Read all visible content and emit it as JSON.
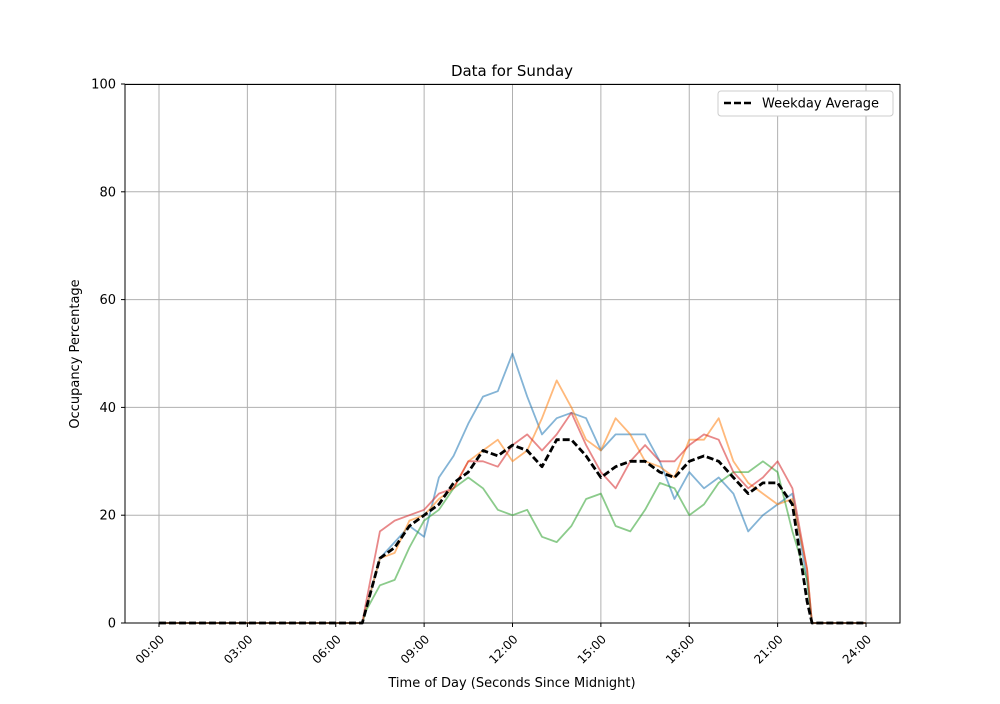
{
  "chart_data": {
    "type": "line",
    "title": "Data for Sunday",
    "xlabel": "Time of Day (Seconds Since Midnight)",
    "ylabel": "Occupancy Percentage",
    "ylim": [
      0,
      100
    ],
    "xlim": [
      "00:00",
      "24:00"
    ],
    "x_ticks": [
      "00:00",
      "03:00",
      "06:00",
      "09:00",
      "12:00",
      "15:00",
      "18:00",
      "21:00",
      "24:00"
    ],
    "y_ticks": [
      0,
      20,
      40,
      60,
      80,
      100
    ],
    "grid": true,
    "legend_position": "top-right",
    "x": [
      "00:00",
      "06:54",
      "07:00",
      "07:30",
      "08:00",
      "08:30",
      "09:00",
      "09:30",
      "10:00",
      "10:30",
      "11:00",
      "11:30",
      "12:00",
      "12:30",
      "13:00",
      "13:30",
      "14:00",
      "14:30",
      "15:00",
      "15:30",
      "16:00",
      "16:30",
      "17:00",
      "17:30",
      "18:00",
      "18:30",
      "19:00",
      "19:30",
      "20:00",
      "20:30",
      "21:00",
      "21:30",
      "22:00",
      "22:10",
      "24:00"
    ],
    "series": [
      {
        "color": "#1f77b4",
        "style": "solid",
        "alpha": 0.55,
        "values": [
          0,
          0,
          2,
          12,
          15,
          18,
          16,
          27,
          31,
          37,
          42,
          43,
          50,
          42,
          35,
          38,
          39,
          38,
          32,
          35,
          35,
          35,
          30,
          23,
          28,
          25,
          27,
          24,
          17,
          20,
          22,
          24,
          8,
          0,
          0
        ]
      },
      {
        "color": "#ff7f0e",
        "style": "solid",
        "alpha": 0.55,
        "values": [
          0,
          0,
          2,
          12,
          13,
          19,
          20,
          23,
          25,
          30,
          32,
          34,
          30,
          32,
          38,
          45,
          40,
          34,
          32,
          38,
          35,
          30,
          29,
          27,
          34,
          34,
          38,
          30,
          26,
          24,
          22,
          23,
          10,
          0,
          0
        ]
      },
      {
        "color": "#2ca02c",
        "style": "solid",
        "alpha": 0.55,
        "values": [
          0,
          0,
          2,
          7,
          8,
          14,
          19,
          21,
          25,
          27,
          25,
          21,
          20,
          21,
          16,
          15,
          18,
          23,
          24,
          18,
          17,
          21,
          26,
          25,
          20,
          22,
          26,
          28,
          28,
          30,
          28,
          17,
          8,
          0,
          0
        ]
      },
      {
        "color": "#d62728",
        "style": "solid",
        "alpha": 0.55,
        "values": [
          0,
          0,
          3,
          17,
          19,
          20,
          21,
          24,
          25,
          30,
          30,
          29,
          33,
          35,
          32,
          35,
          39,
          33,
          28,
          25,
          30,
          33,
          30,
          30,
          33,
          35,
          34,
          28,
          25,
          27,
          30,
          25,
          10,
          0,
          0
        ]
      },
      {
        "name": "Weekday Average",
        "color": "#000000",
        "style": "dashed",
        "alpha": 1,
        "values": [
          0,
          0,
          2,
          12,
          14,
          18,
          20,
          22,
          26,
          28,
          32,
          31,
          33,
          32,
          29,
          34,
          34,
          31,
          27,
          29,
          30,
          30,
          28,
          27,
          30,
          31,
          30,
          27,
          24,
          26,
          26,
          22,
          4,
          0,
          0
        ]
      }
    ]
  }
}
